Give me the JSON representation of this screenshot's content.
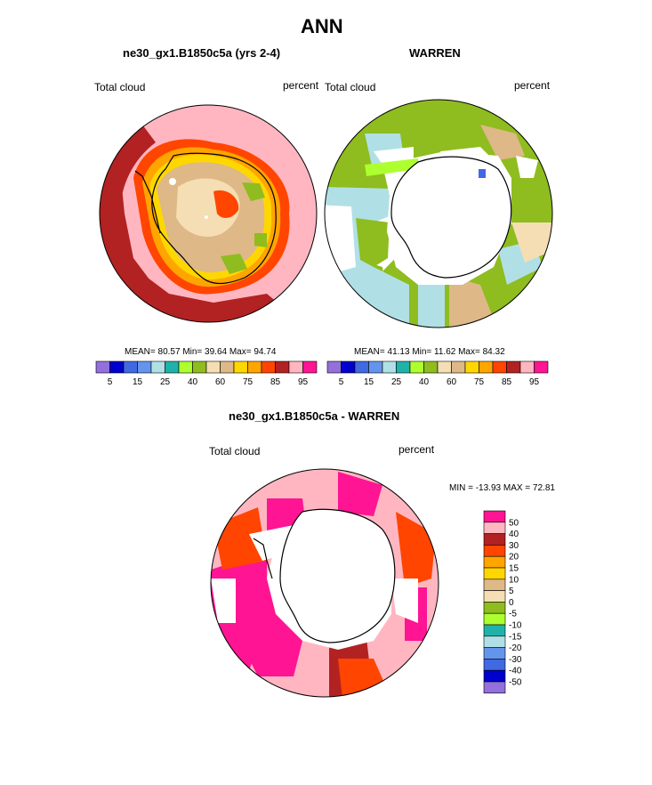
{
  "figure": {
    "title": "ANN",
    "panel_left": {
      "title": "ne30_gx1.B1850c5a (yrs 2-4)",
      "left_label": "Total cloud",
      "right_label": "percent",
      "stats": "MEAN=  80.57  Min=  39.64  Max=  94.74"
    },
    "panel_right": {
      "title": "WARREN",
      "left_label": "Total cloud",
      "right_label": "percent",
      "stats": "MEAN=  41.13  Min=  11.62  Max=  84.32"
    },
    "panel_diff": {
      "title": "ne30_gx1.B1850c5a - WARREN",
      "left_label": "Total cloud",
      "right_label": "percent",
      "stats": "MIN = -13.93 MAX =  72.81"
    }
  },
  "colorbar_abs": {
    "colors": [
      "#9370db",
      "#0000cd",
      "#4169e1",
      "#6495ed",
      "#b0e0e6",
      "#20b2aa",
      "#adff2f",
      "#8fbc1f",
      "#f5deb3",
      "#deb887",
      "#ffd700",
      "#ffa500",
      "#ff4500",
      "#b22222",
      "#ffb6c1",
      "#ff1493"
    ],
    "tick_labels": [
      "5",
      "15",
      "25",
      "40",
      "60",
      "75",
      "85",
      "95"
    ]
  },
  "colorbar_diff": {
    "colors": [
      "#ff1493",
      "#ffb6c1",
      "#b22222",
      "#ff4500",
      "#ffa500",
      "#ffd700",
      "#deb887",
      "#f5deb3",
      "#8fbc1f",
      "#adff2f",
      "#20b2aa",
      "#b0e0e6",
      "#6495ed",
      "#4169e1",
      "#0000cd",
      "#9370db"
    ],
    "tick_labels": [
      "50",
      "40",
      "30",
      "20",
      "15",
      "10",
      "5",
      "0",
      "-5",
      "-10",
      "-15",
      "-20",
      "-30",
      "-40",
      "-50"
    ]
  },
  "palette": {
    "pink_light": "#ffb6c1",
    "pink_hot": "#ff1493",
    "firebrick": "#b22222",
    "orange_red": "#ff4500",
    "orange": "#ffa500",
    "gold": "#ffd700",
    "tan": "#deb887",
    "wheat": "#f5deb3",
    "olive_green": "#8fbc1f",
    "lime": "#adff2f",
    "powder_blue": "#b0e0e6",
    "teal": "#20b2aa"
  }
}
